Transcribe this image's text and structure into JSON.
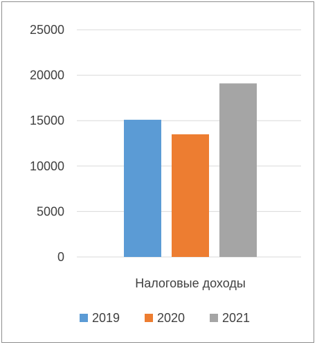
{
  "chart_data": {
    "type": "bar",
    "categories": [
      "Налоговые доходы"
    ],
    "series": [
      {
        "name": "2019",
        "values": [
          15100
        ],
        "color": "#5b9bd5"
      },
      {
        "name": "2020",
        "values": [
          13500
        ],
        "color": "#ed7d31"
      },
      {
        "name": "2021",
        "values": [
          19100
        ],
        "color": "#a5a5a5"
      }
    ],
    "yticks": [
      "0",
      "5000",
      "10000",
      "15000",
      "20000",
      "25000"
    ],
    "ylim": [
      0,
      25000
    ],
    "grid": true,
    "legend_position": "bottom",
    "title": "",
    "xlabel": "",
    "ylabel": ""
  }
}
